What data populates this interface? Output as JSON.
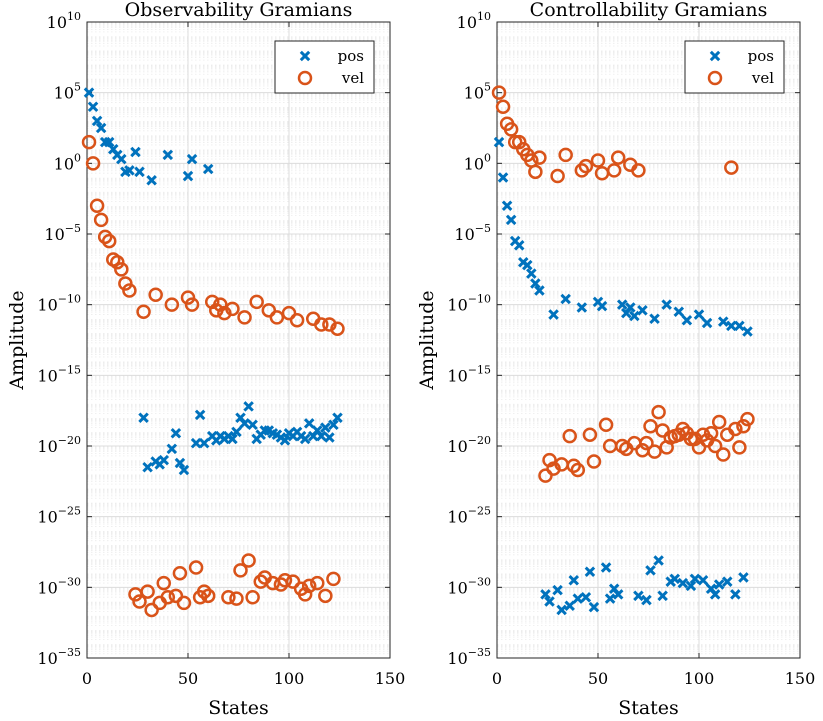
{
  "chart_data": [
    {
      "type": "scatter",
      "title": "Observability Gramians",
      "xlabel": "States",
      "ylabel": "Amplitude",
      "xlim": [
        0,
        150
      ],
      "ylim_exponent": [
        -35,
        10
      ],
      "y_scale": "log",
      "grid": true,
      "legend_position": "top-right",
      "x_ticks": [
        "0",
        "50",
        "100",
        "150"
      ],
      "y_tick_exponents": [
        "10",
        "5",
        "0",
        "-5",
        "-10",
        "-15",
        "-20",
        "-25",
        "-30",
        "-35"
      ],
      "series": [
        {
          "name": "pos",
          "marker": "x",
          "color": "#0072BD",
          "x": [
            1,
            3,
            5,
            7,
            9,
            11,
            13,
            15,
            17,
            19,
            21,
            24,
            26,
            28,
            30,
            32,
            34,
            36,
            38,
            40,
            42,
            44,
            46,
            48,
            50,
            52,
            54,
            56,
            58,
            60,
            62,
            64,
            66,
            68,
            70,
            72,
            74,
            76,
            78,
            80,
            82,
            84,
            86,
            88,
            90,
            92,
            94,
            96,
            98,
            100,
            102,
            104,
            106,
            108,
            110,
            112,
            114,
            116,
            118,
            120,
            122,
            124
          ],
          "log10_y": [
            5.0,
            4.0,
            3.0,
            2.5,
            1.5,
            1.5,
            1.0,
            0.6,
            0.3,
            -0.6,
            -0.5,
            0.8,
            -0.6,
            -18.0,
            -21.5,
            -1.2,
            -21.1,
            -21.3,
            -21.0,
            0.6,
            -20.2,
            -19.1,
            -21.2,
            -21.7,
            -0.9,
            0.3,
            -19.8,
            -17.8,
            -19.8,
            -0.4,
            -19.3,
            -19.6,
            -19.3,
            -19.5,
            -19.3,
            -19.5,
            -19.0,
            -18.0,
            -18.4,
            -17.2,
            -18.5,
            -19.5,
            -19.2,
            -18.9,
            -18.9,
            -19.1,
            -19.2,
            -19.4,
            -19.6,
            -19.1,
            -19.3,
            -19.0,
            -19.3,
            -19.5,
            -18.4,
            -19.3,
            -18.9,
            -19.3,
            -18.7,
            -19.4,
            -18.5,
            -18.0
          ],
          "note_points": "estimated"
        },
        {
          "name": "vel",
          "marker": "o",
          "color": "#D95319",
          "x": [
            1,
            3,
            5,
            7,
            9,
            11,
            13,
            15,
            17,
            19,
            21,
            24,
            26,
            28,
            30,
            32,
            34,
            36,
            38,
            40,
            42,
            44,
            46,
            48,
            50,
            52,
            54,
            56,
            58,
            60,
            62,
            64,
            66,
            68,
            70,
            72,
            74,
            76,
            78,
            80,
            82,
            84,
            86,
            88,
            90,
            92,
            94,
            96,
            98,
            100,
            102,
            104,
            106,
            108,
            110,
            112,
            114,
            116,
            118,
            120,
            122,
            124
          ],
          "log10_y": [
            1.5,
            0.0,
            -3.0,
            -4.0,
            -5.2,
            -5.5,
            -6.8,
            -7.0,
            -7.5,
            -8.5,
            -9.0,
            -30.5,
            -31.0,
            -10.5,
            -30.3,
            -31.6,
            -9.3,
            -31.1,
            -29.7,
            -30.7,
            -10.0,
            -30.6,
            -29.0,
            -31.1,
            -9.5,
            -10.0,
            -28.6,
            -30.7,
            -30.3,
            -30.6,
            -9.8,
            -10.4,
            -10.0,
            -10.6,
            -30.7,
            -10.3,
            -30.8,
            -28.8,
            -10.9,
            -28.1,
            -30.7,
            -9.8,
            -29.6,
            -29.3,
            -10.4,
            -29.7,
            -10.9,
            -29.8,
            -29.5,
            -10.6,
            -29.6,
            -11.1,
            -30.1,
            -30.5,
            -29.9,
            -11.0,
            -29.7,
            -11.4,
            -30.6,
            -11.4,
            -29.4,
            -11.7
          ],
          "note_points": "estimated"
        }
      ]
    },
    {
      "type": "scatter",
      "title": "Controllability Gramians",
      "xlabel": "States",
      "ylabel": "Amplitude",
      "xlim": [
        0,
        150
      ],
      "ylim_exponent": [
        -35,
        10
      ],
      "y_scale": "log",
      "grid": true,
      "legend_position": "top-right",
      "x_ticks": [
        "0",
        "50",
        "100",
        "150"
      ],
      "y_tick_exponents": [
        "10",
        "5",
        "0",
        "-5",
        "-10",
        "-15",
        "-20",
        "-25",
        "-30",
        "-35"
      ],
      "series": [
        {
          "name": "pos",
          "marker": "x",
          "color": "#0072BD",
          "x": [
            1,
            3,
            5,
            7,
            9,
            11,
            13,
            15,
            17,
            19,
            21,
            24,
            26,
            28,
            30,
            32,
            34,
            36,
            38,
            40,
            42,
            44,
            46,
            48,
            50,
            52,
            54,
            56,
            58,
            60,
            62,
            64,
            66,
            68,
            70,
            72,
            74,
            76,
            78,
            80,
            82,
            84,
            86,
            88,
            90,
            92,
            94,
            96,
            98,
            100,
            102,
            104,
            106,
            108,
            110,
            112,
            114,
            116,
            118,
            120,
            122,
            124
          ],
          "log10_y": [
            1.5,
            -1.0,
            -3.0,
            -4.0,
            -5.5,
            -5.8,
            -7.0,
            -7.2,
            -7.8,
            -8.5,
            -9.0,
            -30.5,
            -31.0,
            -10.7,
            -30.2,
            -31.6,
            -9.6,
            -31.3,
            -29.5,
            -30.8,
            -10.2,
            -30.7,
            -28.9,
            -31.4,
            -9.8,
            -10.1,
            -28.6,
            -30.8,
            -30.1,
            -30.5,
            -10.0,
            -10.6,
            -10.2,
            -10.8,
            -30.6,
            -10.4,
            -30.9,
            -28.8,
            -11.0,
            -28.1,
            -30.6,
            -10.0,
            -29.6,
            -29.4,
            -10.5,
            -29.7,
            -11.1,
            -29.9,
            -29.4,
            -10.7,
            -29.5,
            -11.3,
            -30.1,
            -30.5,
            -29.8,
            -11.2,
            -29.6,
            -11.5,
            -30.5,
            -11.5,
            -29.3,
            -11.9
          ],
          "note_points": "estimated"
        },
        {
          "name": "vel",
          "marker": "o",
          "color": "#D95319",
          "x": [
            1,
            3,
            5,
            7,
            9,
            11,
            13,
            15,
            17,
            19,
            21,
            24,
            26,
            28,
            30,
            32,
            34,
            36,
            38,
            40,
            42,
            44,
            46,
            48,
            50,
            52,
            54,
            56,
            58,
            60,
            62,
            64,
            66,
            68,
            70,
            72,
            74,
            76,
            78,
            80,
            82,
            84,
            86,
            88,
            90,
            92,
            94,
            96,
            98,
            100,
            102,
            104,
            106,
            108,
            110,
            112,
            114,
            116,
            118,
            120,
            122,
            124
          ],
          "log10_y": [
            5.0,
            4.0,
            2.8,
            2.4,
            1.5,
            1.5,
            1.0,
            0.6,
            0.2,
            -0.6,
            0.4,
            -22.1,
            -21.0,
            -21.6,
            -0.9,
            -21.3,
            0.6,
            -19.3,
            -21.4,
            -21.7,
            -0.5,
            -0.2,
            -19.2,
            -21.1,
            0.2,
            -0.7,
            -18.5,
            -20.0,
            -0.5,
            0.4,
            -20.0,
            -20.2,
            -0.1,
            -19.8,
            -0.5,
            -20.3,
            -19.8,
            -18.6,
            -20.4,
            -17.6,
            -18.9,
            -20.1,
            -19.4,
            -19.3,
            -19.2,
            -18.8,
            -19.1,
            -19.5,
            -19.5,
            -20.1,
            -19.2,
            -19.6,
            -19.1,
            -20.0,
            -18.3,
            -20.6,
            -19.2,
            -0.3,
            -18.8,
            -20.1,
            -18.6,
            -18.1
          ],
          "note_points": "estimated"
        }
      ]
    }
  ]
}
